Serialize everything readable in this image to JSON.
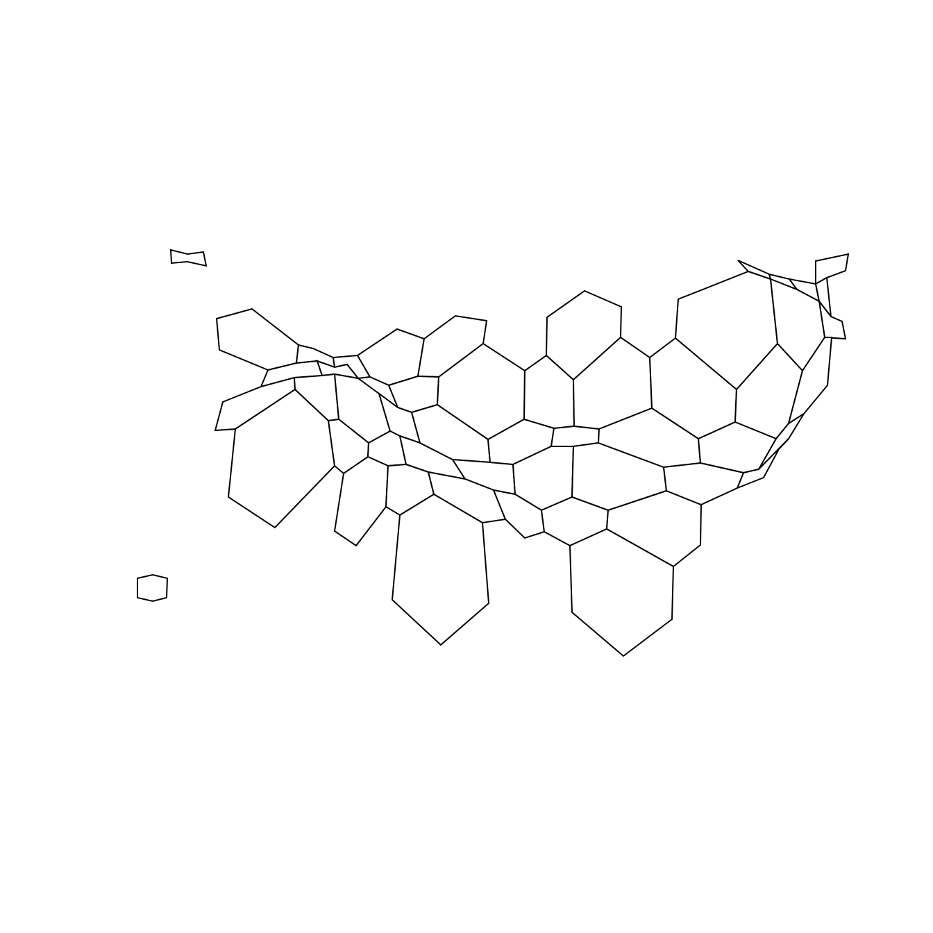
{
  "map": {
    "style": {
      "background": "#ffffff",
      "fill": "#ffffff",
      "stroke": "#000000"
    },
    "region_count": 56,
    "labels": []
  }
}
